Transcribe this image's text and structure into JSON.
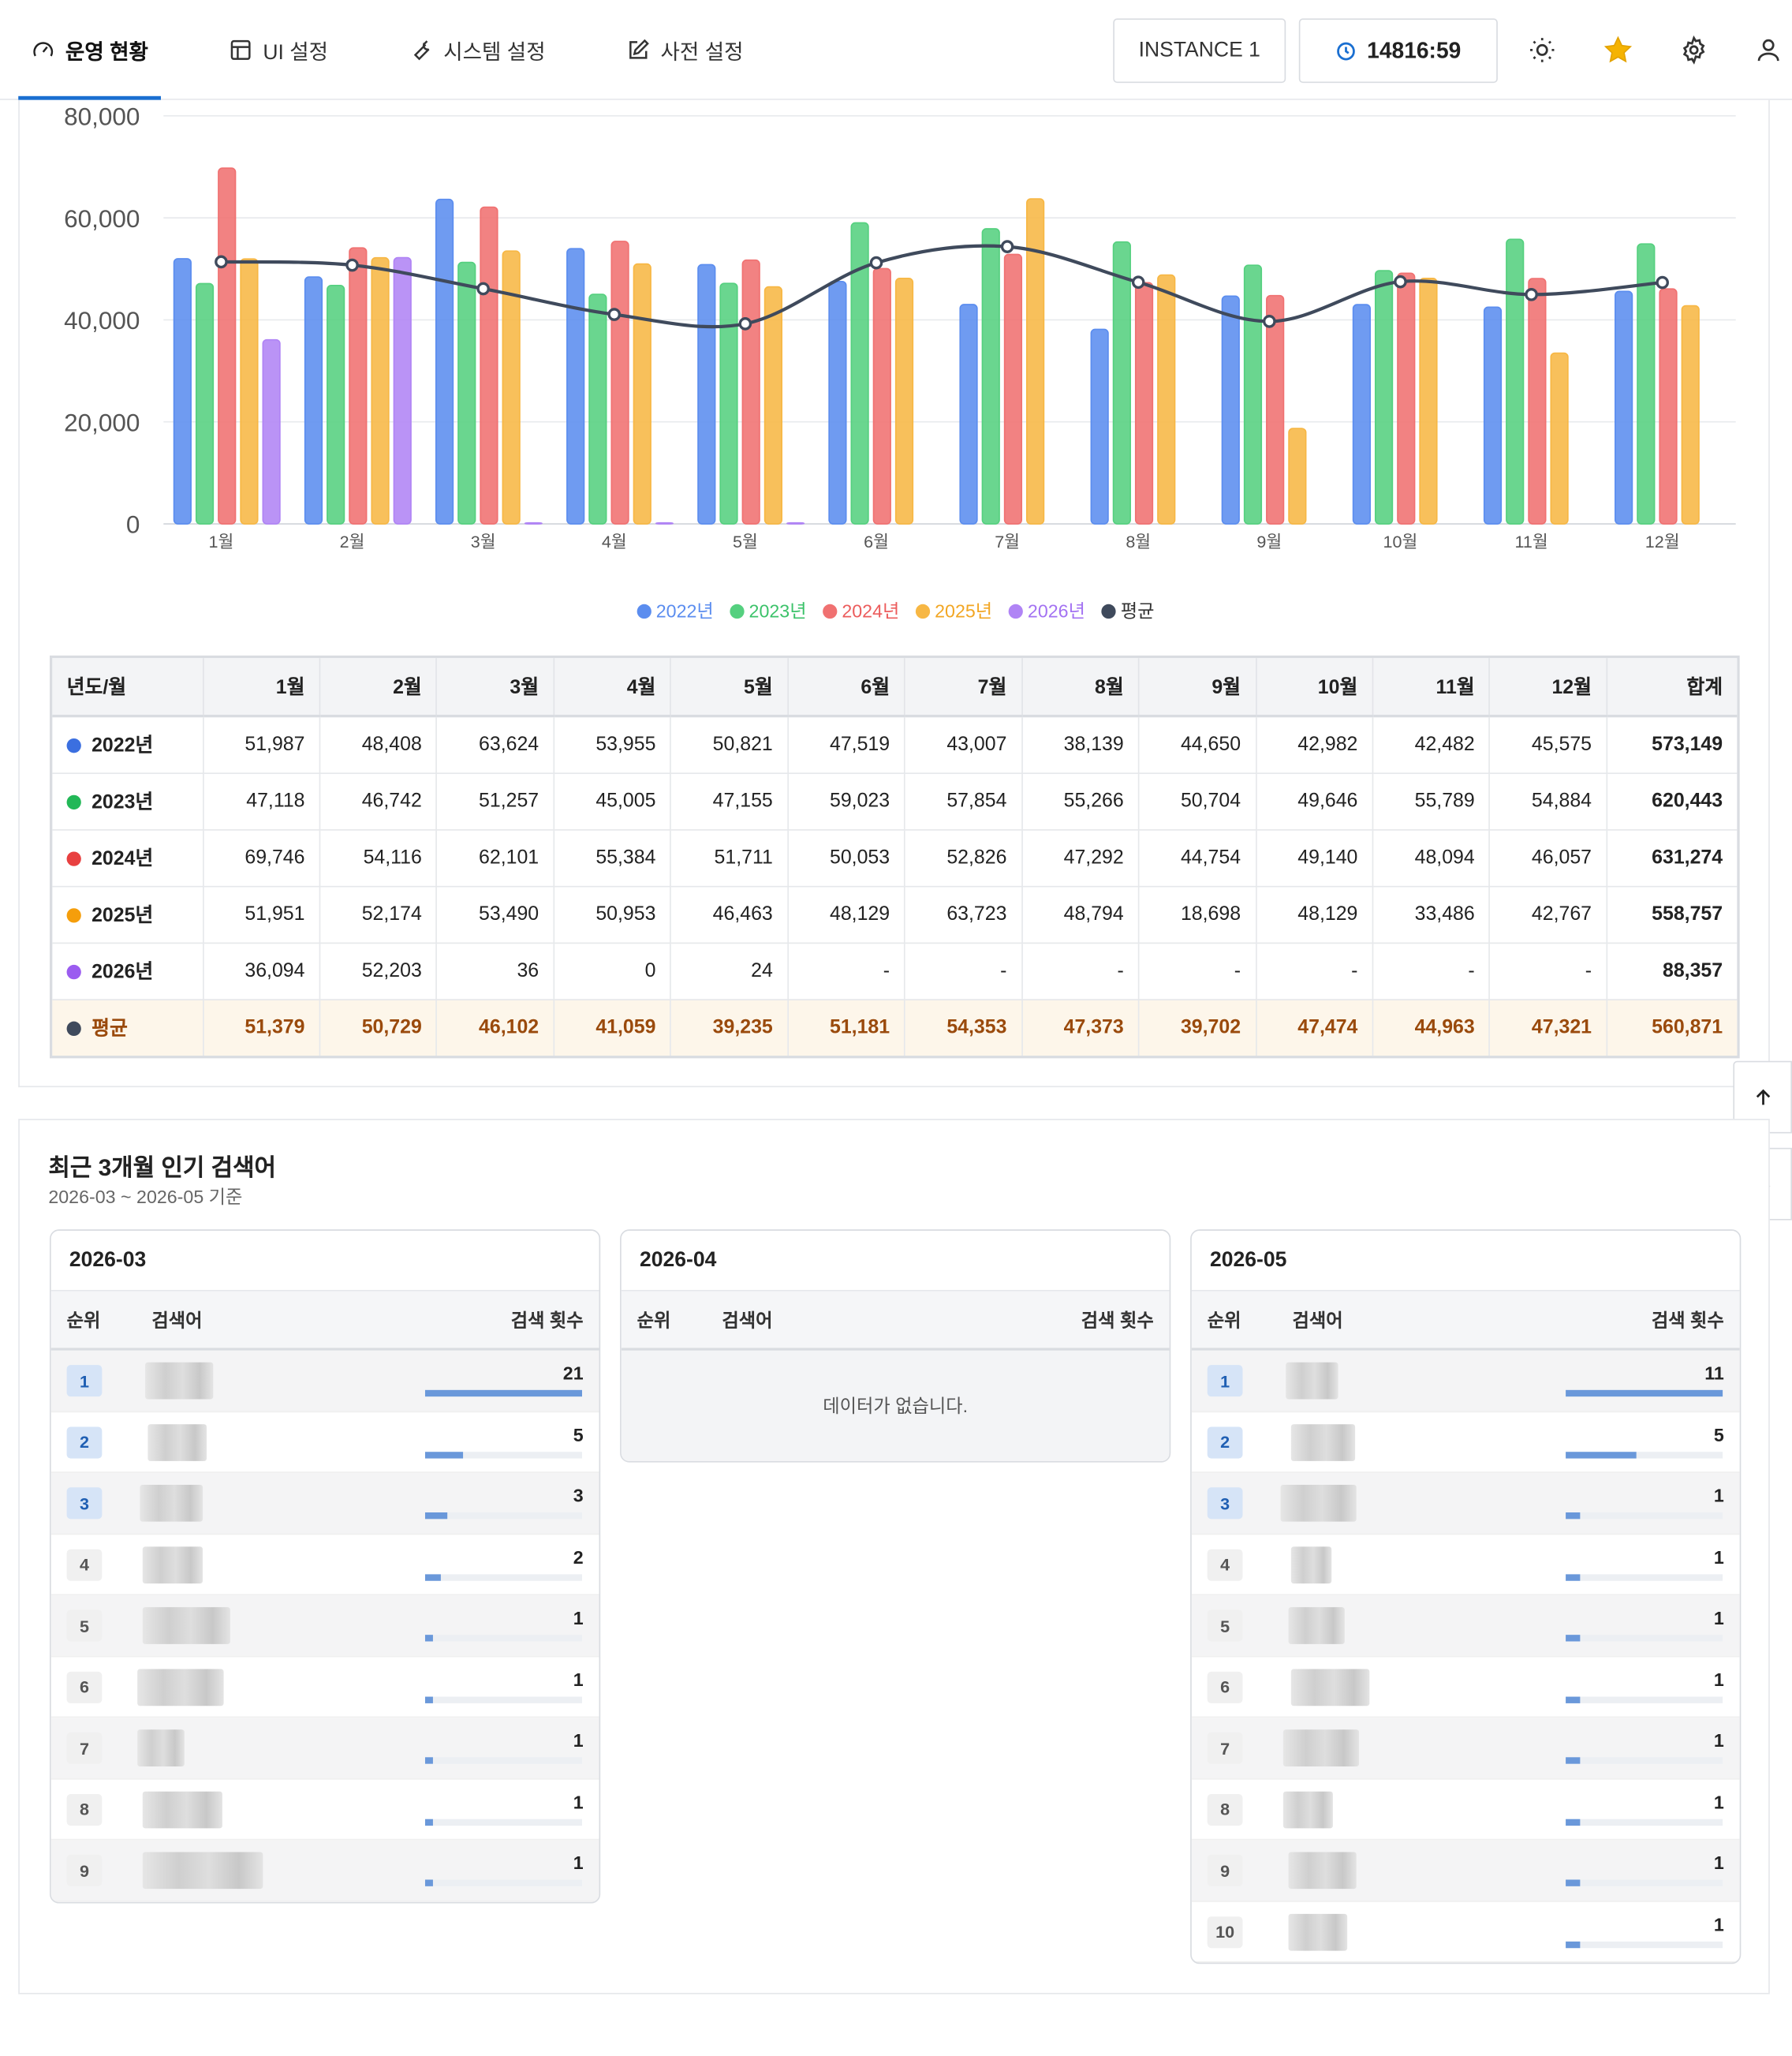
{
  "header": {
    "tabs": [
      {
        "label": "운영 현황",
        "icon": "gauge-icon",
        "active": true
      },
      {
        "label": "UI 설정",
        "icon": "layout-icon"
      },
      {
        "label": "시스템 설정",
        "icon": "wrench-icon"
      },
      {
        "label": "사전 설정",
        "icon": "edit-icon"
      }
    ],
    "instance": "INSTANCE 1",
    "timer": "14816:59",
    "icons": [
      "sun-icon",
      "star-icon",
      "gear-icon",
      "user-icon"
    ]
  },
  "colors": {
    "y2022": "#5b8def",
    "y2023": "#55d07f",
    "y2024": "#f07171",
    "y2025": "#f7b744",
    "y2026": "#b084f5",
    "avg": "#3f4a5c"
  },
  "chart_data": {
    "type": "bar",
    "categories": [
      "1월",
      "2월",
      "3월",
      "4월",
      "5월",
      "6월",
      "7월",
      "8월",
      "9월",
      "10월",
      "11월",
      "12월"
    ],
    "ylim": [
      0,
      80000
    ],
    "yticks": [
      "80,000",
      "60,000",
      "40,000",
      "20,000",
      "0"
    ],
    "series": [
      {
        "name": "2022년",
        "color": "#5b8def",
        "values": [
          51987,
          48408,
          63624,
          53955,
          50821,
          47519,
          43007,
          38139,
          44650,
          42982,
          42482,
          45575
        ]
      },
      {
        "name": "2023년",
        "color": "#55d07f",
        "values": [
          47118,
          46742,
          51257,
          45005,
          47155,
          59023,
          57854,
          55266,
          50704,
          49646,
          55789,
          54884
        ]
      },
      {
        "name": "2024년",
        "color": "#f07171",
        "values": [
          69746,
          54116,
          62101,
          55384,
          51711,
          50053,
          52826,
          47292,
          44754,
          49140,
          48094,
          46057
        ]
      },
      {
        "name": "2025년",
        "color": "#f7b744",
        "values": [
          51951,
          52174,
          53490,
          50953,
          46463,
          48129,
          63723,
          48794,
          18698,
          48129,
          33486,
          42767
        ]
      },
      {
        "name": "2026년",
        "color": "#b084f5",
        "values": [
          36094,
          52203,
          36,
          0,
          24,
          null,
          null,
          null,
          null,
          null,
          null,
          null
        ]
      },
      {
        "name": "평균",
        "type": "line",
        "color": "#3f4a5c",
        "values": [
          51379,
          50729,
          46102,
          41059,
          39235,
          51181,
          54353,
          47373,
          39702,
          47474,
          44963,
          47321
        ]
      }
    ]
  },
  "table": {
    "headers": [
      "년도/월",
      "1월",
      "2월",
      "3월",
      "4월",
      "5월",
      "6월",
      "7월",
      "8월",
      "9월",
      "10월",
      "11월",
      "12월",
      "합계"
    ],
    "rows": [
      {
        "label": "2022년",
        "color": "#3b6fe0",
        "values": [
          "51,987",
          "48,408",
          "63,624",
          "53,955",
          "50,821",
          "47,519",
          "43,007",
          "38,139",
          "44,650",
          "42,982",
          "42,482",
          "45,575"
        ],
        "total": "573,149"
      },
      {
        "label": "2023년",
        "color": "#22b857",
        "values": [
          "47,118",
          "46,742",
          "51,257",
          "45,005",
          "47,155",
          "59,023",
          "57,854",
          "55,266",
          "50,704",
          "49,646",
          "55,789",
          "54,884"
        ],
        "total": "620,443"
      },
      {
        "label": "2024년",
        "color": "#e84040",
        "values": [
          "69,746",
          "54,116",
          "62,101",
          "55,384",
          "51,711",
          "50,053",
          "52,826",
          "47,292",
          "44,754",
          "49,140",
          "48,094",
          "46,057"
        ],
        "total": "631,274"
      },
      {
        "label": "2025년",
        "color": "#f59e0b",
        "values": [
          "51,951",
          "52,174",
          "53,490",
          "50,953",
          "46,463",
          "48,129",
          "63,723",
          "48,794",
          "18,698",
          "48,129",
          "33,486",
          "42,767"
        ],
        "total": "558,757"
      },
      {
        "label": "2026년",
        "color": "#9b5cf0",
        "values": [
          "36,094",
          "52,203",
          "36",
          "0",
          "24",
          "-",
          "-",
          "-",
          "-",
          "-",
          "-",
          "-"
        ],
        "total": "88,357"
      }
    ],
    "avg": {
      "label": "평균",
      "color": "#3f4a5c",
      "values": [
        "51,379",
        "50,729",
        "46,102",
        "41,059",
        "39,235",
        "51,181",
        "54,353",
        "47,373",
        "39,702",
        "47,474",
        "44,963",
        "47,321"
      ],
      "total": "560,871"
    }
  },
  "popular": {
    "title": "최근 3개월 인기 검색어",
    "subtitle": "2026-03 ~ 2026-05 기준",
    "col_rank": "순위",
    "col_term": "검색어",
    "col_count": "검색 횟수",
    "empty_text": "데이터가 없습니다.",
    "months": [
      {
        "month": "2026-03",
        "rows": [
          {
            "rank": "1",
            "count": "21",
            "ratio": 1.0
          },
          {
            "rank": "2",
            "count": "5",
            "ratio": 0.24
          },
          {
            "rank": "3",
            "count": "3",
            "ratio": 0.14
          },
          {
            "rank": "4",
            "count": "2",
            "ratio": 0.1
          },
          {
            "rank": "5",
            "count": "1",
            "ratio": 0.05
          },
          {
            "rank": "6",
            "count": "1",
            "ratio": 0.05
          },
          {
            "rank": "7",
            "count": "1",
            "ratio": 0.05
          },
          {
            "rank": "8",
            "count": "1",
            "ratio": 0.05
          },
          {
            "rank": "9",
            "count": "1",
            "ratio": 0.05
          }
        ]
      },
      {
        "month": "2026-04",
        "rows": []
      },
      {
        "month": "2026-05",
        "rows": [
          {
            "rank": "1",
            "count": "11",
            "ratio": 1.0
          },
          {
            "rank": "2",
            "count": "5",
            "ratio": 0.45
          },
          {
            "rank": "3",
            "count": "1",
            "ratio": 0.09
          },
          {
            "rank": "4",
            "count": "1",
            "ratio": 0.09
          },
          {
            "rank": "5",
            "count": "1",
            "ratio": 0.09
          },
          {
            "rank": "6",
            "count": "1",
            "ratio": 0.09
          },
          {
            "rank": "7",
            "count": "1",
            "ratio": 0.09
          },
          {
            "rank": "8",
            "count": "1",
            "ratio": 0.09
          },
          {
            "rank": "9",
            "count": "1",
            "ratio": 0.09
          },
          {
            "rank": "10",
            "count": "1",
            "ratio": 0.09
          }
        ]
      }
    ]
  }
}
